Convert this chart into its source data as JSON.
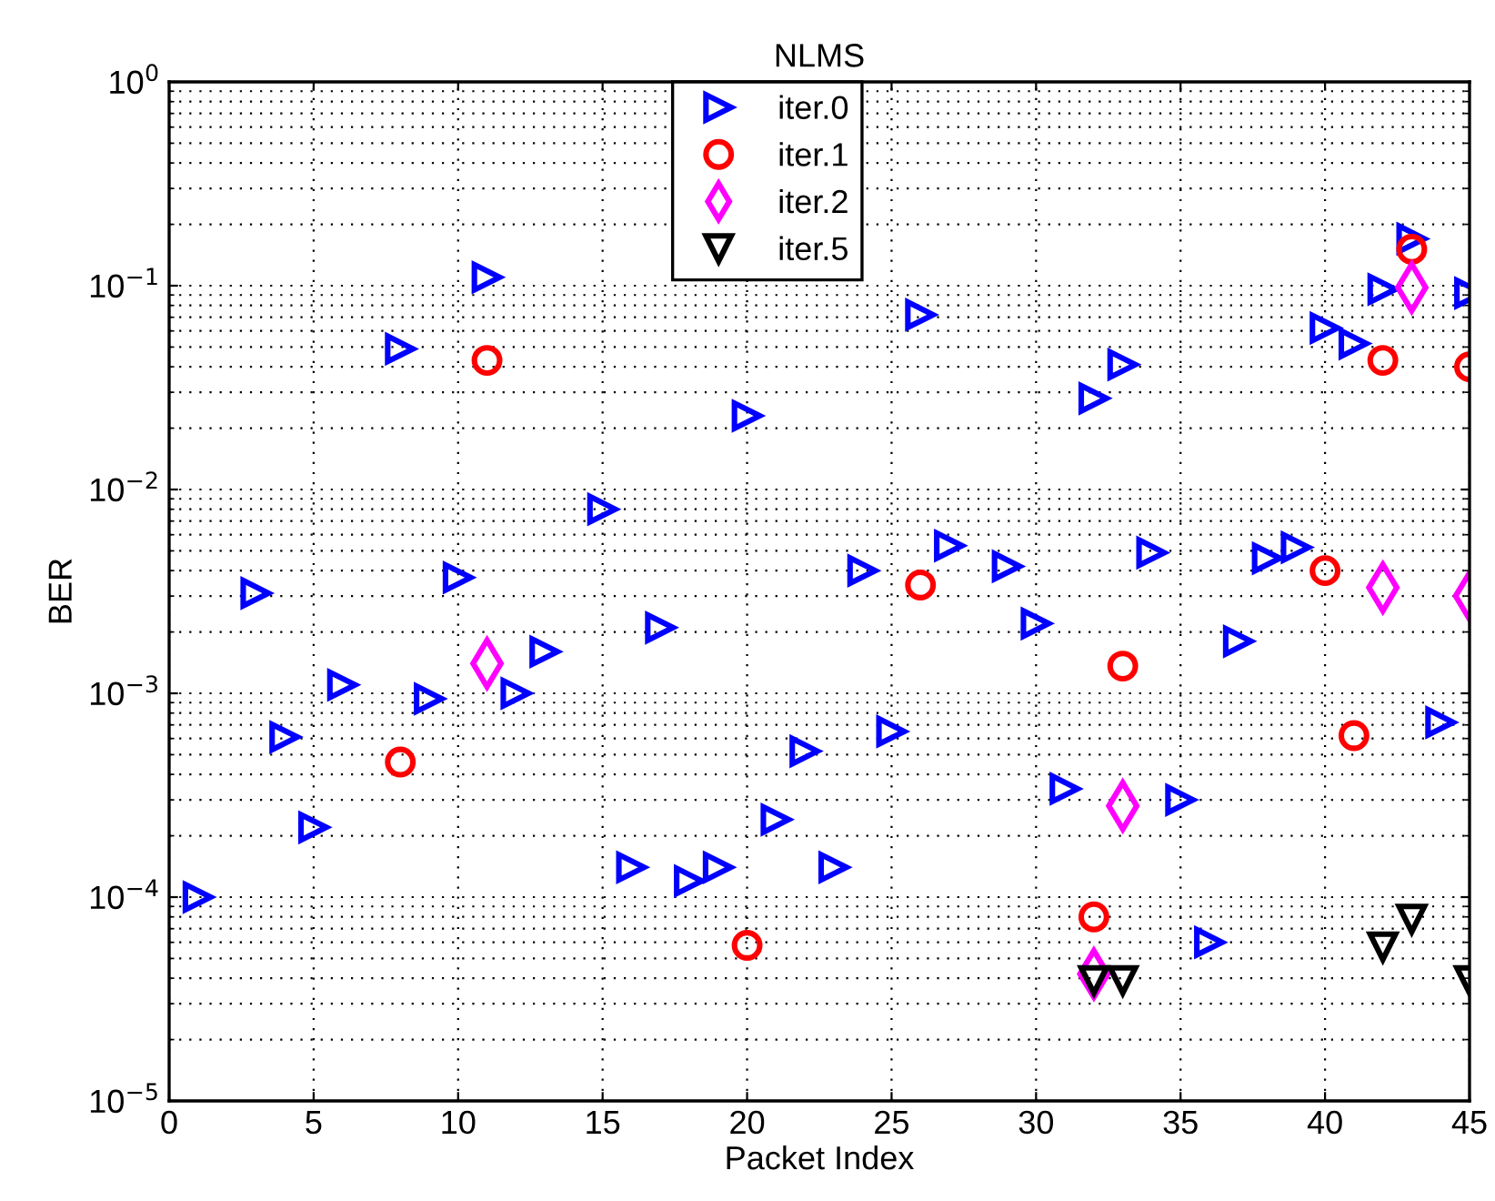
{
  "chart_data": {
    "type": "scatter",
    "title": "NLMS",
    "xlabel": "Packet Index",
    "ylabel": "BER",
    "log": "y",
    "grid": true,
    "legend": "top",
    "xlim": [
      0,
      45
    ],
    "xticks": [
      0,
      5,
      10,
      15,
      20,
      25,
      30,
      35,
      40,
      45
    ],
    "ylim": [
      1e-05,
      1
    ],
    "yticks": [
      {
        "value": 1e-05,
        "label": "10$^{−5}$"
      },
      {
        "value": 0.0001,
        "label": "10$^{−4}$"
      },
      {
        "value": 0.001,
        "label": "10$^{−3}$"
      },
      {
        "value": 0.01,
        "label": "10$^{−2}$"
      },
      {
        "value": 0.1,
        "label": "10$^{−1}$"
      },
      {
        "value": 1,
        "label": "10$^{0}$"
      }
    ],
    "series": [
      {
        "name": "iter.0",
        "color": "#0000ff",
        "marker": "triangle-right",
        "x": [
          1,
          3,
          4,
          5,
          6,
          8,
          9,
          10,
          11,
          12,
          13,
          15,
          16,
          17,
          18,
          19,
          20,
          21,
          22,
          23,
          24,
          25,
          26,
          27,
          29,
          30,
          31,
          32,
          33,
          34,
          35,
          36,
          37,
          38,
          39,
          40,
          41,
          42,
          43,
          44,
          45
        ],
        "values": [
          0.0001,
          0.0031,
          0.00061,
          0.00022,
          0.0011,
          0.049,
          0.00094,
          0.0037,
          0.11,
          0.001,
          0.0016,
          0.008,
          0.00014,
          0.0021,
          0.00012,
          0.00014,
          0.023,
          0.00024,
          0.00052,
          0.00014,
          0.004,
          0.00065,
          0.072,
          0.0053,
          0.0042,
          0.0022,
          0.00034,
          0.028,
          0.041,
          0.0049,
          0.0003,
          6e-05,
          0.0018,
          0.0046,
          0.0052,
          0.062,
          0.052,
          0.096,
          0.17,
          0.00072,
          0.092
        ]
      },
      {
        "name": "iter.1",
        "color": "#ff0000",
        "marker": "circle",
        "x": [
          8,
          11,
          20,
          26,
          32,
          33,
          40,
          41,
          42,
          43,
          45
        ],
        "values": [
          0.00046,
          0.043,
          5.8e-05,
          0.0034,
          8e-05,
          0.00136,
          0.004,
          0.00062,
          0.043,
          0.151,
          0.04
        ]
      },
      {
        "name": "iter.2",
        "color": "#ff00ff",
        "marker": "diamond",
        "x": [
          11,
          32,
          33,
          42,
          43,
          45
        ],
        "values": [
          0.0014,
          4.2e-05,
          0.00028,
          0.0033,
          0.098,
          0.003
        ]
      },
      {
        "name": "iter.5",
        "color": "#000000",
        "marker": "triangle-down",
        "x": [
          32,
          33,
          42,
          43,
          45
        ],
        "values": [
          3.9e-05,
          3.9e-05,
          5.7e-05,
          7.8e-05,
          3.9e-05
        ]
      }
    ]
  }
}
